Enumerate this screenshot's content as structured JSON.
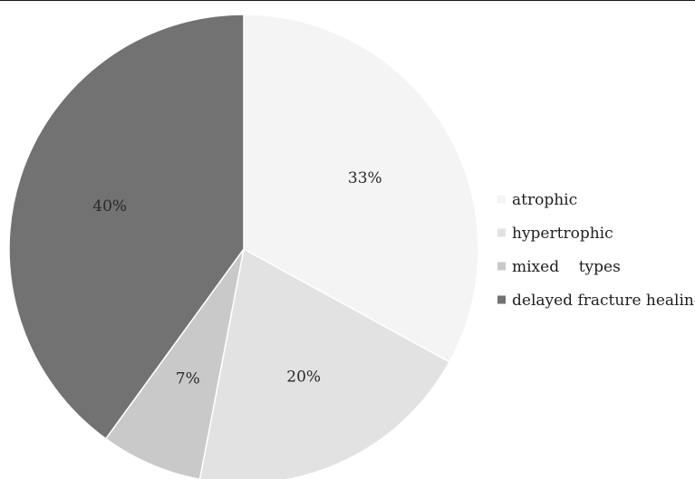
{
  "chart_data": {
    "type": "pie",
    "start_angle_deg": 0,
    "direction": "clockwise",
    "slices": [
      {
        "label": "atrophic",
        "value": 33,
        "display": "33%",
        "color": "#f4f4f4"
      },
      {
        "label": "hypertrophic",
        "value": 20,
        "display": "20%",
        "color": "#e2e2e2"
      },
      {
        "label": "mixed    types",
        "value": 7,
        "display": "7%",
        "color": "#c9c9c9"
      },
      {
        "label": "delayed fracture healing",
        "value": 40,
        "display": "40%",
        "color": "#727272"
      }
    ],
    "legend": {
      "position": "right",
      "items": [
        "atrophic",
        "hypertrophic",
        "mixed    types",
        "delayed fracture healing"
      ]
    },
    "slice_border_color": "#ffffff",
    "label_color": "#2a2a2a"
  }
}
